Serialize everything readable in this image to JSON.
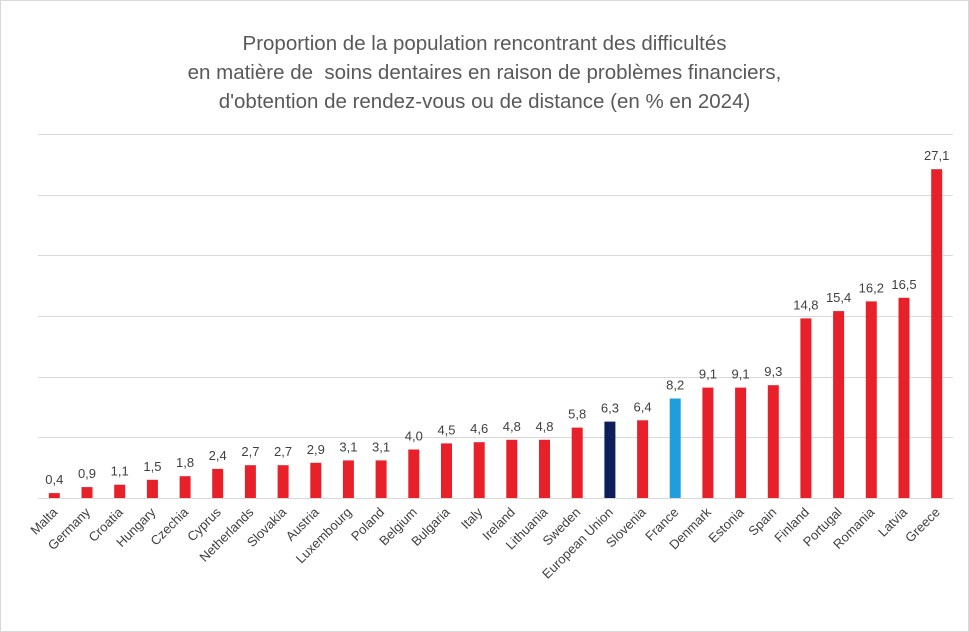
{
  "chart_data": {
    "type": "bar",
    "title_lines": [
      "Proportion de la population rencontrant des difficultés",
      "en matière de  soins dentaires en raison de problèmes financiers,",
      "d'obtention de rendez-vous ou de distance (en % en 2024)"
    ],
    "categories": [
      "Malta",
      "Germany",
      "Croatia",
      "Hungary",
      "Czechia",
      "Cyprus",
      "Netherlands",
      "Slovakia",
      "Austria",
      "Luxembourg",
      "Poland",
      "Belgium",
      "Bulgaria",
      "Italy",
      "Ireland",
      "Lithuania",
      "Sweden",
      "European Union",
      "Slovenia",
      "France",
      "Denmark",
      "Estonia",
      "Spain",
      "Finland",
      "Portugal",
      "Romania",
      "Latvia",
      "Greece"
    ],
    "values": [
      0.4,
      0.9,
      1.1,
      1.5,
      1.8,
      2.4,
      2.7,
      2.7,
      2.9,
      3.1,
      3.1,
      4.0,
      4.5,
      4.6,
      4.8,
      4.8,
      5.8,
      6.3,
      6.4,
      8.2,
      9.1,
      9.1,
      9.3,
      14.8,
      15.4,
      16.2,
      16.5,
      27.1
    ],
    "value_labels": [
      "0,4",
      "0,9",
      "1,1",
      "1,5",
      "1,8",
      "2,4",
      "2,7",
      "2,7",
      "2,9",
      "3,1",
      "3,1",
      "4,0",
      "4,5",
      "4,6",
      "4,8",
      "4,8",
      "5,8",
      "6,3",
      "6,4",
      "8,2",
      "9,1",
      "9,1",
      "9,3",
      "14,8",
      "15,4",
      "16,2",
      "16,5",
      "27,1"
    ],
    "ylim": [
      0,
      30
    ],
    "gridlines": [
      0,
      5,
      10,
      15,
      20,
      25,
      30
    ],
    "grid": true,
    "colors": {
      "default": "#e8202a",
      "European Union": "#0e1e5b",
      "France": "#1e9fdb"
    }
  }
}
